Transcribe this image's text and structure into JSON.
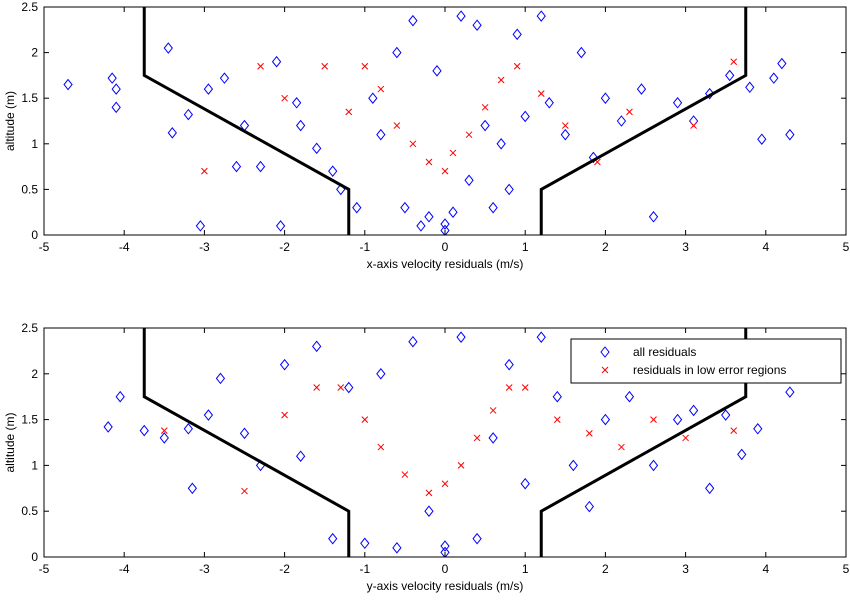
{
  "chart_data": [
    {
      "type": "scatter",
      "xlabel": "x-axis velocity residuals (m/s)",
      "ylabel": "altitude (m)",
      "xlim": [
        -5,
        5
      ],
      "ylim": [
        0,
        2.5
      ],
      "xticks": [
        "-5",
        "-4",
        "-3",
        "-2",
        "-1",
        "0",
        "1",
        "2",
        "3",
        "4",
        "5"
      ],
      "yticks": [
        "0",
        "0.5",
        "1",
        "1.5",
        "2",
        "2.5"
      ],
      "grid": false,
      "legend": null,
      "boundary": {
        "left": [
          [
            -3.75,
            2.5
          ],
          [
            -3.75,
            1.75
          ],
          [
            -1.2,
            0.5
          ],
          [
            -1.2,
            0
          ]
        ],
        "right": [
          [
            3.75,
            2.5
          ],
          [
            3.75,
            1.75
          ],
          [
            1.2,
            0.5
          ],
          [
            1.2,
            0
          ]
        ]
      },
      "series": [
        {
          "name": "all residuals",
          "marker": "diamond",
          "color": "#0000ff",
          "points": [
            [
              -4.7,
              1.65
            ],
            [
              -4.15,
              1.72
            ],
            [
              -4.1,
              1.6
            ],
            [
              -4.1,
              1.4
            ],
            [
              -3.45,
              2.05
            ],
            [
              -3.4,
              1.12
            ],
            [
              -3.2,
              1.32
            ],
            [
              -3.05,
              0.1
            ],
            [
              -2.95,
              1.6
            ],
            [
              -2.75,
              1.72
            ],
            [
              -2.6,
              0.75
            ],
            [
              -2.5,
              1.2
            ],
            [
              -2.3,
              0.75
            ],
            [
              -2.1,
              1.9
            ],
            [
              -2.05,
              0.1
            ],
            [
              -1.85,
              1.45
            ],
            [
              -1.8,
              1.2
            ],
            [
              -1.6,
              0.95
            ],
            [
              -1.4,
              0.7
            ],
            [
              -1.3,
              0.5
            ],
            [
              -1.1,
              0.3
            ],
            [
              -0.9,
              1.5
            ],
            [
              -0.8,
              1.1
            ],
            [
              -0.6,
              2.0
            ],
            [
              -0.5,
              0.3
            ],
            [
              -0.4,
              2.35
            ],
            [
              -0.3,
              0.1
            ],
            [
              -0.2,
              0.2
            ],
            [
              -0.1,
              1.8
            ],
            [
              0.0,
              0.05
            ],
            [
              0.0,
              0.12
            ],
            [
              0.1,
              0.25
            ],
            [
              0.2,
              2.4
            ],
            [
              0.3,
              0.6
            ],
            [
              0.4,
              2.3
            ],
            [
              0.5,
              1.2
            ],
            [
              0.6,
              0.3
            ],
            [
              0.7,
              1.0
            ],
            [
              0.8,
              0.5
            ],
            [
              0.9,
              2.2
            ],
            [
              1.0,
              1.3
            ],
            [
              1.2,
              2.4
            ],
            [
              1.3,
              1.45
            ],
            [
              1.5,
              1.1
            ],
            [
              1.7,
              2.0
            ],
            [
              1.85,
              0.85
            ],
            [
              2.0,
              1.5
            ],
            [
              2.2,
              1.25
            ],
            [
              2.45,
              1.6
            ],
            [
              2.6,
              0.2
            ],
            [
              2.9,
              1.45
            ],
            [
              3.1,
              1.25
            ],
            [
              3.3,
              1.55
            ],
            [
              3.55,
              1.75
            ],
            [
              3.8,
              1.62
            ],
            [
              3.95,
              1.05
            ],
            [
              4.1,
              1.72
            ],
            [
              4.2,
              1.88
            ],
            [
              4.3,
              1.1
            ]
          ]
        },
        {
          "name": "residuals in low error regions",
          "marker": "x",
          "color": "#ff0000",
          "points": [
            [
              -3.0,
              0.7
            ],
            [
              -2.3,
              1.85
            ],
            [
              -2.0,
              1.5
            ],
            [
              -1.5,
              1.85
            ],
            [
              -1.2,
              1.35
            ],
            [
              -1.0,
              1.85
            ],
            [
              -0.8,
              1.6
            ],
            [
              -0.6,
              1.2
            ],
            [
              -0.4,
              1.0
            ],
            [
              -0.2,
              0.8
            ],
            [
              0.0,
              0.7
            ],
            [
              0.1,
              0.9
            ],
            [
              0.3,
              1.1
            ],
            [
              0.5,
              1.4
            ],
            [
              0.7,
              1.7
            ],
            [
              0.9,
              1.85
            ],
            [
              1.2,
              1.55
            ],
            [
              1.5,
              1.2
            ],
            [
              1.9,
              0.8
            ],
            [
              2.3,
              1.35
            ],
            [
              3.1,
              1.2
            ],
            [
              3.6,
              1.9
            ]
          ]
        }
      ]
    },
    {
      "type": "scatter",
      "xlabel": "y-axis velocity residuals (m/s)",
      "ylabel": "altitude (m)",
      "xlim": [
        -5,
        5
      ],
      "ylim": [
        0,
        2.5
      ],
      "xticks": [
        "-5",
        "-4",
        "-3",
        "-2",
        "-1",
        "0",
        "1",
        "2",
        "3",
        "4",
        "5"
      ],
      "yticks": [
        "0",
        "0.5",
        "1",
        "1.5",
        "2",
        "2.5"
      ],
      "grid": false,
      "legend": {
        "position": "top-right",
        "entries": [
          "all residuals",
          "residuals in low error regions"
        ]
      },
      "boundary": {
        "left": [
          [
            -3.75,
            2.5
          ],
          [
            -3.75,
            1.75
          ],
          [
            -1.2,
            0.5
          ],
          [
            -1.2,
            0
          ]
        ],
        "right": [
          [
            3.75,
            2.5
          ],
          [
            3.75,
            1.75
          ],
          [
            1.2,
            0.5
          ],
          [
            1.2,
            0
          ]
        ]
      },
      "series": [
        {
          "name": "all residuals",
          "marker": "diamond",
          "color": "#0000ff",
          "points": [
            [
              -4.2,
              1.42
            ],
            [
              -4.05,
              1.75
            ],
            [
              -3.75,
              1.38
            ],
            [
              -3.5,
              1.3
            ],
            [
              -3.2,
              1.4
            ],
            [
              -3.15,
              0.75
            ],
            [
              -2.95,
              1.55
            ],
            [
              -2.8,
              1.95
            ],
            [
              -2.5,
              1.35
            ],
            [
              -2.3,
              1.0
            ],
            [
              -2.0,
              2.1
            ],
            [
              -1.8,
              1.1
            ],
            [
              -1.6,
              2.3
            ],
            [
              -1.4,
              0.2
            ],
            [
              -1.2,
              1.85
            ],
            [
              -1.0,
              0.15
            ],
            [
              -0.8,
              2.0
            ],
            [
              -0.6,
              0.1
            ],
            [
              -0.4,
              2.35
            ],
            [
              -0.2,
              0.5
            ],
            [
              0.0,
              0.05
            ],
            [
              0.0,
              0.12
            ],
            [
              0.2,
              2.4
            ],
            [
              0.4,
              0.2
            ],
            [
              0.6,
              1.3
            ],
            [
              0.8,
              2.1
            ],
            [
              1.0,
              0.8
            ],
            [
              1.2,
              2.4
            ],
            [
              1.4,
              1.75
            ],
            [
              1.6,
              1.0
            ],
            [
              1.8,
              0.55
            ],
            [
              2.0,
              1.5
            ],
            [
              2.3,
              1.75
            ],
            [
              2.6,
              1.0
            ],
            [
              2.9,
              1.5
            ],
            [
              3.1,
              1.6
            ],
            [
              3.3,
              0.75
            ],
            [
              3.5,
              1.55
            ],
            [
              3.7,
              1.12
            ],
            [
              3.9,
              1.4
            ],
            [
              4.3,
              1.8
            ]
          ]
        },
        {
          "name": "residuals in low error regions",
          "marker": "x",
          "color": "#ff0000",
          "points": [
            [
              -3.5,
              1.38
            ],
            [
              -2.5,
              0.72
            ],
            [
              -2.0,
              1.55
            ],
            [
              -1.6,
              1.85
            ],
            [
              -1.3,
              1.85
            ],
            [
              -1.0,
              1.5
            ],
            [
              -0.8,
              1.2
            ],
            [
              -0.5,
              0.9
            ],
            [
              -0.2,
              0.7
            ],
            [
              0.0,
              0.8
            ],
            [
              0.2,
              1.0
            ],
            [
              0.4,
              1.3
            ],
            [
              0.6,
              1.6
            ],
            [
              0.8,
              1.85
            ],
            [
              1.0,
              1.85
            ],
            [
              1.4,
              1.5
            ],
            [
              1.8,
              1.35
            ],
            [
              2.2,
              1.2
            ],
            [
              2.6,
              1.5
            ],
            [
              3.0,
              1.3
            ],
            [
              3.6,
              1.38
            ]
          ]
        }
      ]
    }
  ]
}
